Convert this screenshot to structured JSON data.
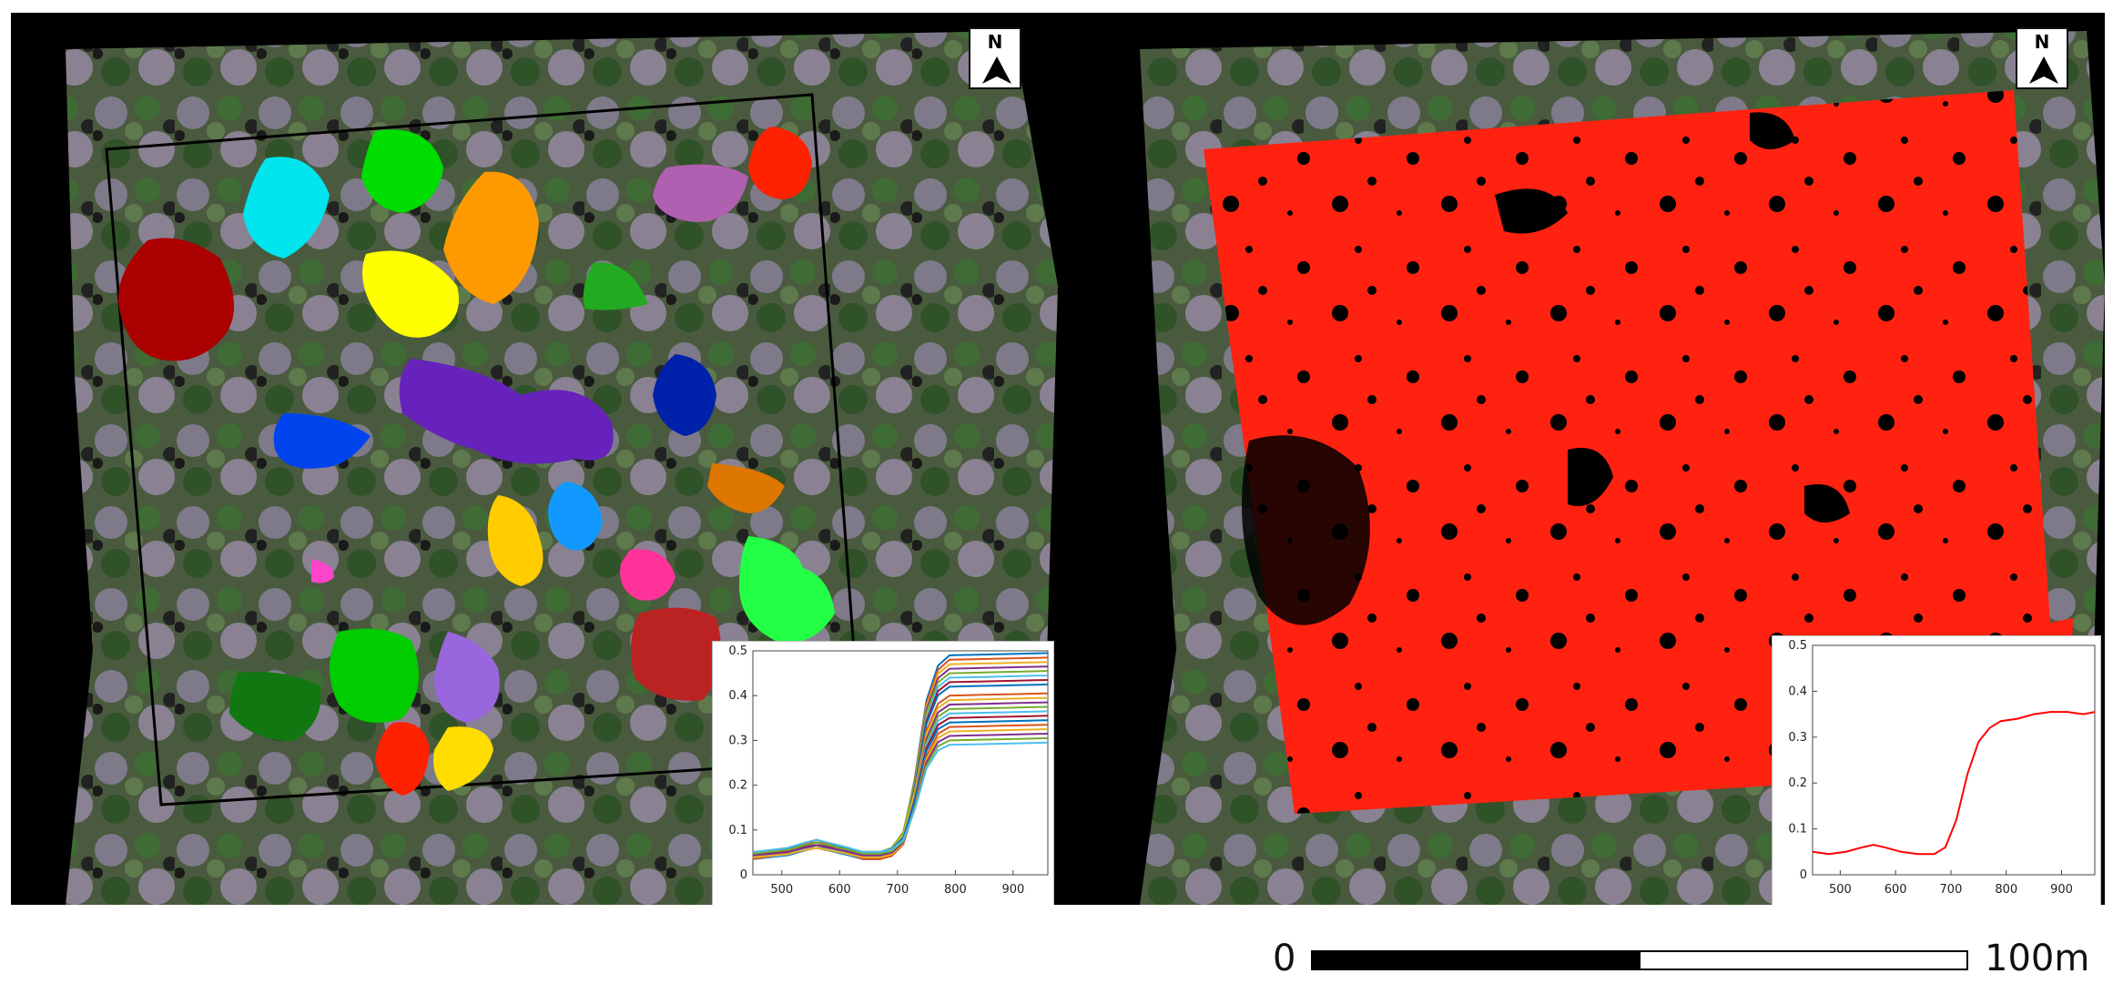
{
  "left_panel": {
    "north_label": "N",
    "inset_chart": {
      "type": "line",
      "x_ticks": [
        "500",
        "600",
        "700",
        "800",
        "900"
      ],
      "y_ticks": [
        "0",
        "0.1",
        "0.2",
        "0.3",
        "0.4",
        "0.5"
      ],
      "xlim": [
        450,
        960
      ],
      "ylim": [
        0,
        0.5
      ],
      "series_colors": [
        "#0072bd",
        "#d95319",
        "#edb120",
        "#7e2f8e",
        "#77ac30",
        "#4dbeee",
        "#a2142f",
        "#0072bd",
        "#d95319",
        "#edb120",
        "#7e2f8e",
        "#77ac30",
        "#4dbeee",
        "#a2142f",
        "#0072bd",
        "#d95319",
        "#edb120",
        "#7e2f8e",
        "#77ac30",
        "#4dbeee"
      ],
      "plateau_values": [
        0.49,
        0.48,
        0.47,
        0.46,
        0.45,
        0.44,
        0.43,
        0.42,
        0.4,
        0.39,
        0.38,
        0.37,
        0.36,
        0.35,
        0.34,
        0.33,
        0.32,
        0.31,
        0.3,
        0.29
      ]
    }
  },
  "right_panel": {
    "north_label": "N",
    "inset_chart": {
      "type": "line",
      "x_ticks": [
        "500",
        "600",
        "700",
        "800",
        "900"
      ],
      "y_ticks": [
        "0",
        "0.1",
        "0.2",
        "0.3",
        "0.4",
        "0.5"
      ],
      "xlim": [
        450,
        960
      ],
      "ylim": [
        0,
        0.5
      ],
      "series": [
        {
          "color": "#ff0000",
          "x": [
            450,
            480,
            510,
            540,
            560,
            580,
            610,
            640,
            670,
            690,
            710,
            730,
            750,
            770,
            790,
            820,
            850,
            880,
            910,
            940,
            960
          ],
          "y": [
            0.05,
            0.045,
            0.05,
            0.06,
            0.065,
            0.06,
            0.05,
            0.045,
            0.045,
            0.06,
            0.12,
            0.22,
            0.29,
            0.32,
            0.335,
            0.34,
            0.35,
            0.355,
            0.355,
            0.35,
            0.355
          ]
        }
      ]
    }
  },
  "scale_bar": {
    "start_label": "0",
    "end_label": "100m"
  }
}
